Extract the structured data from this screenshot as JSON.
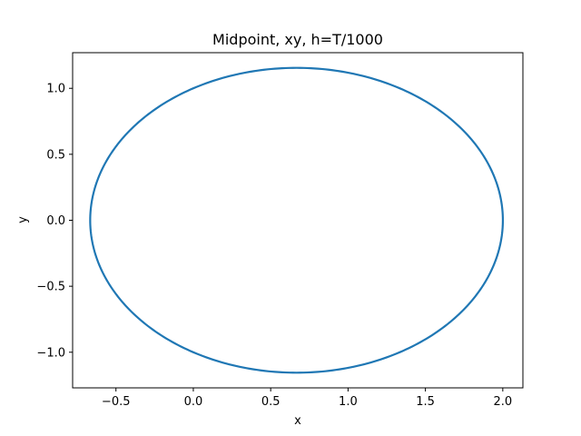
{
  "chart_data": {
    "type": "line",
    "title": "Midpoint, xy, h=T/1000",
    "xlabel": "x",
    "ylabel": "y",
    "xlim": [
      -0.78,
      2.13
    ],
    "ylim": [
      -1.27,
      1.27
    ],
    "xticks": [
      -0.5,
      0.0,
      0.5,
      1.0,
      1.5,
      2.0
    ],
    "xtick_labels": [
      "−0.5",
      "0.0",
      "0.5",
      "1.0",
      "1.5",
      "2.0"
    ],
    "yticks": [
      -1.0,
      -0.5,
      0.0,
      0.5,
      1.0
    ],
    "ytick_labels": [
      "−1.0",
      "−0.5",
      "0.0",
      "0.5",
      "1.0"
    ],
    "grid": false,
    "series": [
      {
        "color": "#1f77b4",
        "shape": "closed orbit",
        "x_range": [
          -0.667,
          2.0
        ],
        "y_range": [
          -1.155,
          1.155
        ],
        "center": [
          0.667,
          0.0
        ]
      }
    ]
  }
}
